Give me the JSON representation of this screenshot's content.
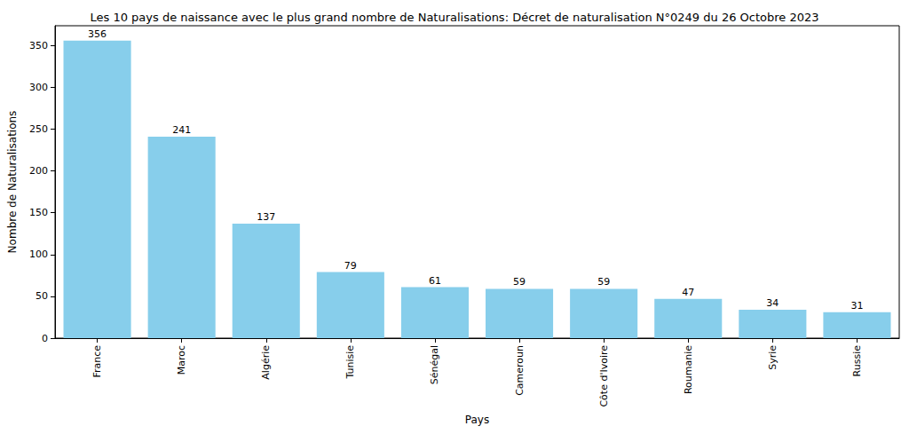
{
  "chart_data": {
    "type": "bar",
    "title": "Les 10 pays de naissance avec le plus grand nombre de Naturalisations: Décret de naturalisation N°0249 du 26 Octobre 2023",
    "x_label": "Pays",
    "y_label": "Nombre de Naturalisations",
    "categories": [
      "France",
      "Maroc",
      "Algérie",
      "Tunisie",
      "Sénégal",
      "Cameroun",
      "Côte d'Ivoire",
      "Roumanie",
      "Syrie",
      "Russie"
    ],
    "values": [
      356,
      241,
      137,
      79,
      61,
      59,
      59,
      47,
      34,
      31
    ],
    "color": "#87ceeb",
    "ylim": [
      0,
      373.8
    ],
    "yticks": [
      0,
      50,
      100,
      150,
      200,
      250,
      300,
      350
    ],
    "grid": false,
    "data_labels": true
  }
}
